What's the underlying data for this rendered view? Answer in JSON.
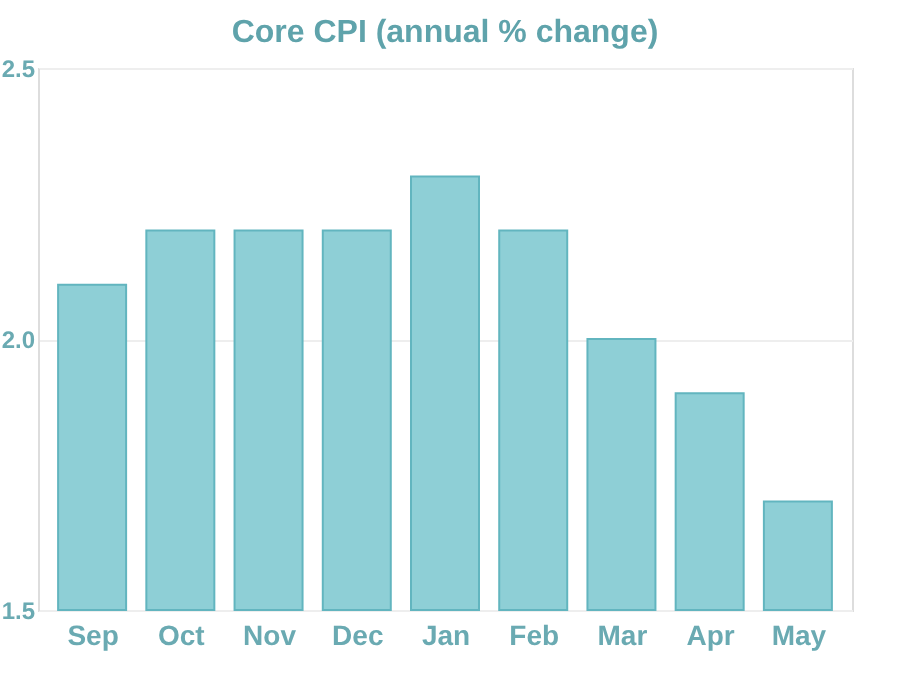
{
  "chart_data": {
    "type": "bar",
    "title": "Core CPI (annual % change)",
    "categories": [
      "Sep",
      "Oct",
      "Nov",
      "Dec",
      "Jan",
      "Feb",
      "Mar",
      "Apr",
      "May"
    ],
    "values": [
      2.1,
      2.2,
      2.2,
      2.2,
      2.3,
      2.2,
      2.0,
      1.9,
      1.7
    ],
    "color": "#8ecfd6",
    "ylim": [
      1.5,
      2.5
    ],
    "yticks": [
      {
        "value": 1.5,
        "label": "1.5"
      },
      {
        "value": 2.0,
        "label": "2.0"
      },
      {
        "value": 2.5,
        "label": "2.5"
      }
    ],
    "grid": "y"
  }
}
